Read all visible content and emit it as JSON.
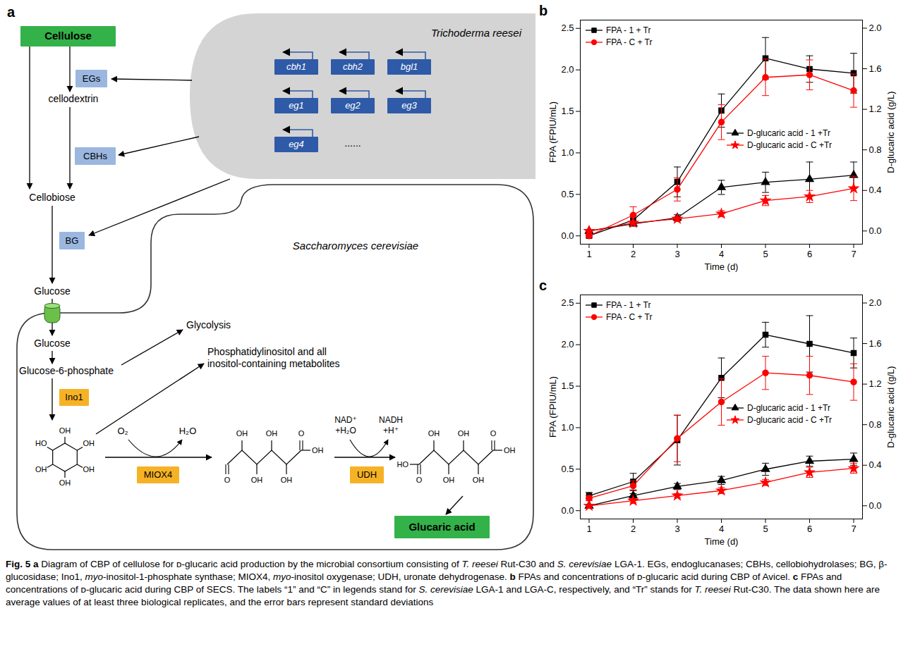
{
  "diagram": {
    "panel_label": "a",
    "substrate": "Cellulose",
    "fungus": "Trichoderma reesei",
    "genes": [
      "cbh1",
      "cbh2",
      "bgl1",
      "eg1",
      "eg2",
      "eg3",
      "eg4"
    ],
    "genes_more": "......",
    "enzymes": [
      "EGs",
      "CBHs",
      "BG"
    ],
    "intermediates": [
      "cellodextrin",
      "Cellobiose",
      "Glucose"
    ],
    "yeast": "Saccharomyces cerevisiae",
    "inside": {
      "glucose": "Glucose",
      "g6p": "Glucose-6-phosphate",
      "glycolysis": "Glycolysis",
      "inositol_sink": "Phosphatidylinositol and all inositol-containing metabolites"
    },
    "pathway_enzymes": [
      "Ino1",
      "MIOX4",
      "UDH"
    ],
    "miox4_cofactors": [
      "O₂",
      "H₂O"
    ],
    "udh_cofactors": [
      "NAD⁺ +H₂O",
      "NADH +H⁺"
    ],
    "structures": [
      {
        "kind": "ring",
        "labels": [
          "HO",
          "OH",
          "OH",
          "OH",
          "OH",
          "OH"
        ]
      },
      {
        "kind": "chain",
        "left": [
          "O"
        ],
        "middle": [
          "OH",
          "OH",
          "OH",
          "OH"
        ],
        "right": [
          "O",
          "OH"
        ]
      },
      {
        "kind": "chain",
        "left": [
          "HO",
          "O"
        ],
        "middle": [
          "OH",
          "OH",
          "OH",
          "OH"
        ],
        "right": [
          "O",
          "OH"
        ]
      }
    ],
    "product": "Glucaric acid"
  },
  "chart_data": [
    {
      "type": "line",
      "panel_label": "b",
      "x": [
        1,
        2,
        3,
        4,
        5,
        6,
        7
      ],
      "xlim": [
        0.8,
        7.2
      ],
      "xticks": [
        1,
        2,
        3,
        4,
        5,
        6,
        7
      ],
      "x_label": "Time (d)",
      "ylim": [
        -0.1,
        2.6
      ],
      "yticks": [
        {
          "value": 0,
          "label": "0.0"
        },
        0.5,
        {
          "value": 1,
          "label": "1.0"
        },
        1.5,
        {
          "value": 2,
          "label": "2.0"
        },
        2.5
      ],
      "y_label": "FPA (FPIU/mL)",
      "y2lim": [
        -0.13,
        2.08
      ],
      "y2ticks": [
        {
          "value": 0,
          "label": "0.0"
        },
        0.4,
        0.8,
        1.2,
        1.6,
        {
          "value": 2,
          "label": "2.0"
        }
      ],
      "y2_label": "D-glucaric acid (g/L)",
      "series": [
        {
          "name": "FPA - 1 + Tr",
          "color": "#000000",
          "marker": "square",
          "values": [
            0.0,
            0.19,
            0.65,
            1.51,
            2.14,
            2.01,
            1.96
          ],
          "errors": [
            0.02,
            0.06,
            0.18,
            0.2,
            0.25,
            0.16,
            0.24
          ]
        },
        {
          "name": "FPA - C + Tr",
          "color": "#ff0000",
          "marker": "circle",
          "values": [
            0.0,
            0.25,
            0.56,
            1.37,
            1.91,
            1.94,
            1.75
          ],
          "errors": [
            0.02,
            0.1,
            0.14,
            0.21,
            0.22,
            0.18,
            0.2
          ]
        },
        {
          "name": "D-glucaric acid - 1 +Tr",
          "color": "#000000",
          "marker": "triangle",
          "axis": "y2",
          "values": [
            0.0,
            0.07,
            0.13,
            0.43,
            0.48,
            0.51,
            0.55
          ],
          "errors": [
            0.01,
            0.02,
            0.03,
            0.07,
            0.1,
            0.17,
            0.13
          ]
        },
        {
          "name": "D-glucaric acid - C +Tr",
          "color": "#ff0000",
          "marker": "star",
          "axis": "y2",
          "values": [
            0.0,
            0.08,
            0.12,
            0.17,
            0.3,
            0.34,
            0.42
          ],
          "errors": [
            0.01,
            0.02,
            0.02,
            0.03,
            0.05,
            0.06,
            0.12
          ]
        }
      ]
    },
    {
      "type": "line",
      "panel_label": "c",
      "x": [
        1,
        2,
        3,
        4,
        5,
        6,
        7
      ],
      "xlim": [
        0.8,
        7.2
      ],
      "xticks": [
        1,
        2,
        3,
        4,
        5,
        6,
        7
      ],
      "x_label": "Time (d)",
      "ylim": [
        -0.1,
        2.6
      ],
      "yticks": [
        {
          "value": 0,
          "label": "0.0"
        },
        0.5,
        {
          "value": 1,
          "label": "1.0"
        },
        1.5,
        {
          "value": 2,
          "label": "2.0"
        },
        2.5
      ],
      "y_label": "FPA (FPIU/mL)",
      "y2lim": [
        -0.13,
        2.08
      ],
      "y2ticks": [
        {
          "value": 0,
          "label": "0.0"
        },
        0.4,
        0.8,
        1.2,
        1.6,
        {
          "value": 2,
          "label": "2.0"
        }
      ],
      "y2_label": "D-glucaric acid (g/L)",
      "series": [
        {
          "name": "FPA - 1 + Tr",
          "color": "#000000",
          "marker": "square",
          "values": [
            0.18,
            0.35,
            0.85,
            1.6,
            2.12,
            2.01,
            1.9
          ],
          "errors": [
            0.04,
            0.1,
            0.3,
            0.24,
            0.15,
            0.34,
            0.18
          ]
        },
        {
          "name": "FPA - C + Tr",
          "color": "#ff0000",
          "marker": "circle",
          "values": [
            0.15,
            0.3,
            0.87,
            1.31,
            1.66,
            1.63,
            1.55
          ],
          "errors": [
            0.03,
            0.06,
            0.28,
            0.28,
            0.2,
            0.23,
            0.22
          ]
        },
        {
          "name": "D-glucaric acid - 1 +Tr",
          "color": "#000000",
          "marker": "triangle",
          "axis": "y2",
          "values": [
            0.0,
            0.1,
            0.19,
            0.25,
            0.36,
            0.44,
            0.46
          ],
          "errors": [
            0.01,
            0.02,
            0.03,
            0.04,
            0.06,
            0.05,
            0.06
          ]
        },
        {
          "name": "D-glucaric acid - C +Tr",
          "color": "#ff0000",
          "marker": "star",
          "axis": "y2",
          "values": [
            0.0,
            0.05,
            0.1,
            0.15,
            0.23,
            0.33,
            0.37
          ],
          "errors": [
            0.01,
            0.02,
            0.02,
            0.03,
            0.03,
            0.05,
            0.05
          ]
        }
      ]
    }
  ],
  "caption": [
    {
      "text": "Fig. 5 ",
      "style": "bold"
    },
    {
      "text": "a ",
      "style": "bold"
    },
    {
      "text": "Diagram of CBP of cellulose for ᴅ-glucaric acid production by the microbial consortium consisting of ",
      "style": "plain"
    },
    {
      "text": "T. reesei",
      "style": "italic"
    },
    {
      "text": " Rut-C30 and ",
      "style": "plain"
    },
    {
      "text": "S. cerevisiae",
      "style": "italic"
    },
    {
      "text": " LGA-1. EGs, endoglucanases; CBHs, cellobiohydrolases; BG, β-glucosidase; Ino1, ",
      "style": "plain"
    },
    {
      "text": "myo",
      "style": "italic"
    },
    {
      "text": "-inositol-1-phosphate synthase; MIOX4, ",
      "style": "plain"
    },
    {
      "text": "myo",
      "style": "italic"
    },
    {
      "text": "-inositol oxygenase; UDH, uronate dehydrogenase. ",
      "style": "plain"
    },
    {
      "text": "b ",
      "style": "bold"
    },
    {
      "text": "FPAs and concentrations of ᴅ-glucaric acid during CBP of Avicel. ",
      "style": "plain"
    },
    {
      "text": "c ",
      "style": "bold"
    },
    {
      "text": "FPAs and concentrations of ᴅ-glucaric acid during CBP of SECS. The labels “1” and “C” in legends stand for ",
      "style": "plain"
    },
    {
      "text": "S. cerevisiae",
      "style": "italic"
    },
    {
      "text": " LGA-1 and LGA-C, respectively, and “Tr” stands for ",
      "style": "plain"
    },
    {
      "text": "T. reesei",
      "style": "italic"
    },
    {
      "text": " Rut-C30. The data shown here are average values of at least three biological replicates, and the error bars represent standard deviations",
      "style": "plain"
    }
  ]
}
